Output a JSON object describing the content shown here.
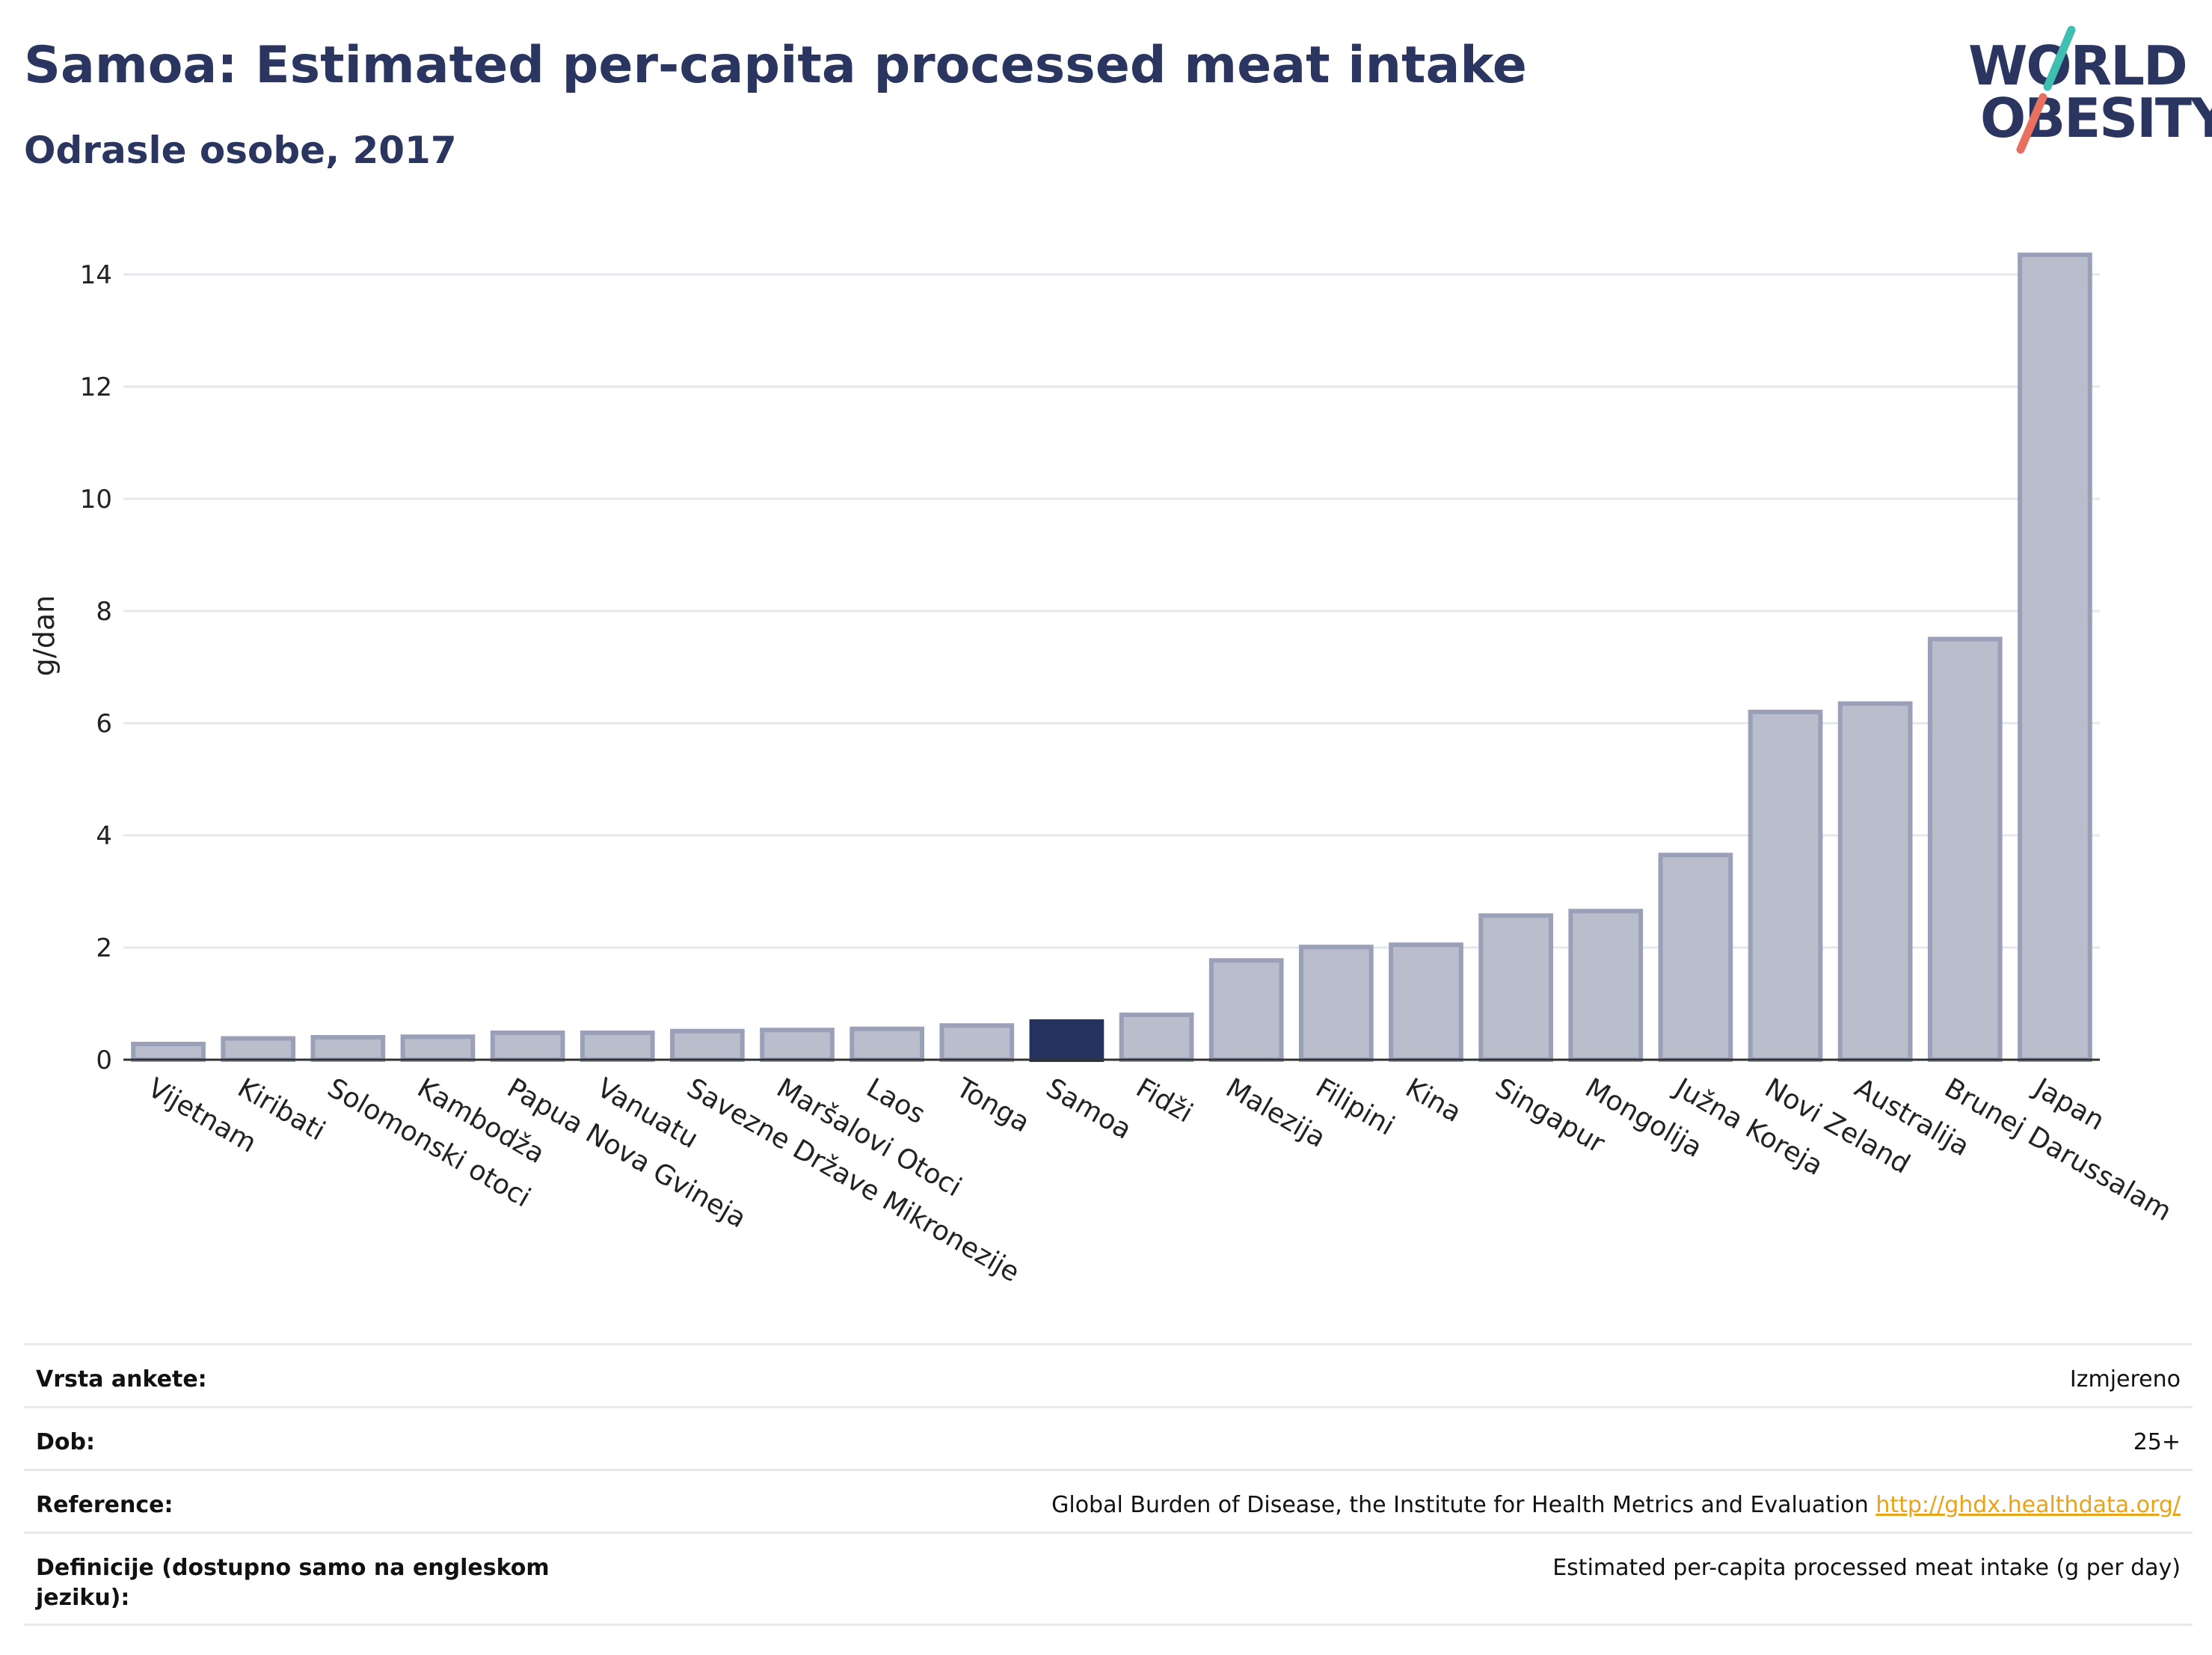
{
  "header": {
    "title": "Samoa: Estimated per-capita processed meat intake",
    "subtitle": "Odrasle osobe, 2017"
  },
  "logo": {
    "line1": "WORLD",
    "line2": "OBESITY",
    "accent_teal": "#3fbfb0",
    "accent_coral": "#e8705e"
  },
  "colors": {
    "bar": "#b9bdcc",
    "bar_stroke": "#9aa0b8",
    "highlight": "#26325e",
    "grid": "#e6e7ec"
  },
  "chart_data": {
    "type": "bar",
    "categories": [
      "Vijetnam",
      "Kiribati",
      "Solomonski otoci",
      "Kambodža",
      "Papua Nova Gvineja",
      "Vanuatu",
      "Savezne Države Mikronezije",
      "Maršalovi Otoci",
      "Laos",
      "Tonga",
      "Samoa",
      "Fidži",
      "Malezija",
      "Filipini",
      "Kina",
      "Singapur",
      "Mongolija",
      "Južna Koreja",
      "Novi Zeland",
      "Australija",
      "Brunej Darussalam",
      "Japan"
    ],
    "values": [
      0.28,
      0.38,
      0.4,
      0.41,
      0.48,
      0.48,
      0.51,
      0.53,
      0.55,
      0.61,
      0.68,
      0.8,
      1.77,
      2.01,
      2.05,
      2.57,
      2.65,
      3.65,
      6.2,
      6.35,
      7.5,
      14.35
    ],
    "highlight": "Samoa",
    "ylabel": "g/dan",
    "xlabel": "",
    "ylim": [
      0,
      14.8
    ],
    "yticks": [
      0,
      2,
      4,
      6,
      8,
      10,
      12,
      14
    ],
    "grid": true
  },
  "meta": {
    "rows": [
      {
        "label": "Vrsta ankete:",
        "value": "Izmjereno"
      },
      {
        "label": "Dob:",
        "value": "25+"
      },
      {
        "label": "Reference:",
        "value": "Global Burden of Disease, the Institute for Health Metrics and Evaluation",
        "link": "http://ghdx.healthdata.org/"
      },
      {
        "label": "Definicije (dostupno samo na engleskom jeziku):",
        "value": "Estimated per-capita processed meat intake (g per day)"
      }
    ]
  }
}
